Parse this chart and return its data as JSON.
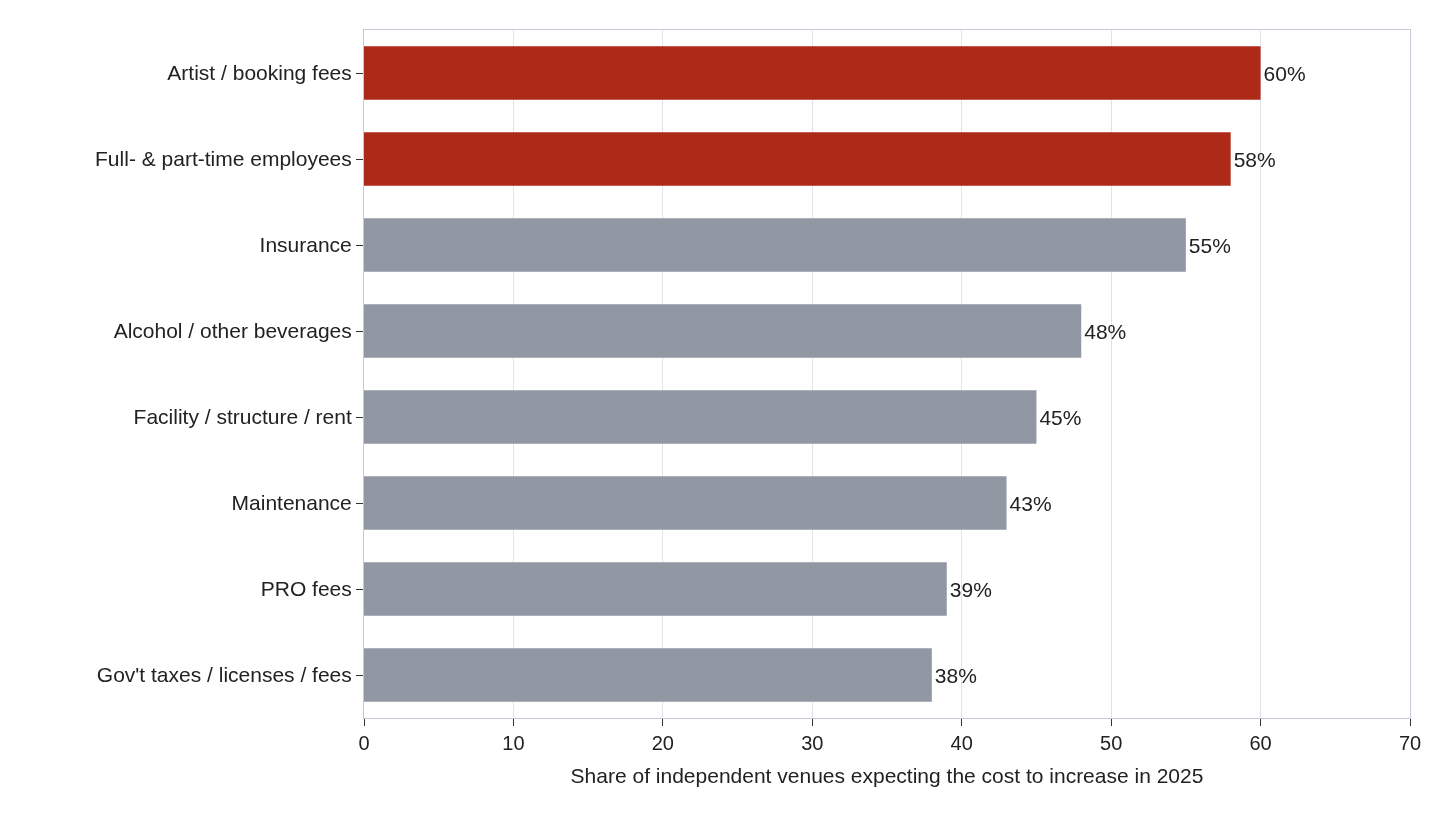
{
  "chart_data": {
    "type": "bar",
    "orientation": "horizontal",
    "xlabel": "Share of independent venues expecting the cost to increase in 2025",
    "categories": [
      "Artist / booking fees",
      "Full- & part-time employees",
      "Insurance",
      "Alcohol / other beverages",
      "Facility / structure / rent",
      "Maintenance",
      "PRO fees",
      "Gov't taxes / licenses / fees"
    ],
    "values": [
      60,
      58,
      55,
      48,
      45,
      43,
      39,
      38
    ],
    "value_labels": [
      "60%",
      "58%",
      "55%",
      "48%",
      "45%",
      "43%",
      "39%",
      "38%"
    ],
    "colors": [
      "#ad2a19",
      "#ad2a19",
      "#9298a3",
      "#9298a3",
      "#9298a3",
      "#9298a3",
      "#9298a3",
      "#9298a3"
    ],
    "xlim": [
      0,
      70
    ],
    "xticks": [
      0,
      10,
      20,
      30,
      40,
      50,
      60,
      70
    ],
    "grid": "x"
  }
}
